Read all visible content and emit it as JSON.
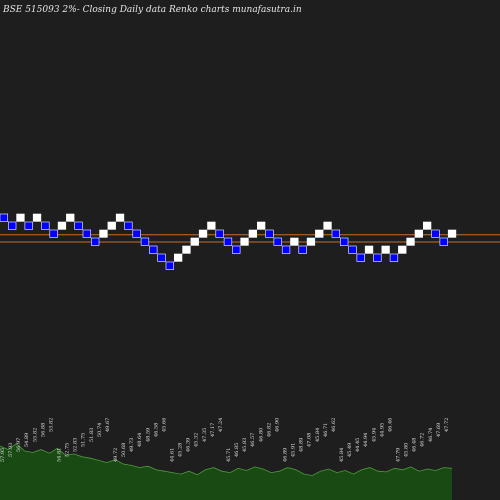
{
  "chart_data": {
    "type": "renko",
    "title": "BSE 515093 2%-  Closing Daily data  Renko  charts munafasutra.in",
    "colors": {
      "background": "#1e1e1e",
      "up_brick": "#ffffff",
      "down_brick": "#0000ff",
      "brick_border": "#ffffff",
      "ref_line": "#c86e28",
      "volume_fill": "#1a4a14",
      "volume_line": "#4c9a3a"
    },
    "bricks": [
      {
        "level": 51,
        "dir": "down"
      },
      {
        "level": 50,
        "dir": "down"
      },
      {
        "level": 51,
        "dir": "up"
      },
      {
        "level": 50,
        "dir": "down"
      },
      {
        "level": 51,
        "dir": "up"
      },
      {
        "level": 50,
        "dir": "down"
      },
      {
        "level": 49,
        "dir": "down"
      },
      {
        "level": 50,
        "dir": "up"
      },
      {
        "level": 51,
        "dir": "up"
      },
      {
        "level": 50,
        "dir": "down"
      },
      {
        "level": 49,
        "dir": "down"
      },
      {
        "level": 48,
        "dir": "down"
      },
      {
        "level": 49,
        "dir": "up"
      },
      {
        "level": 50,
        "dir": "up"
      },
      {
        "level": 51,
        "dir": "up"
      },
      {
        "level": 50,
        "dir": "down"
      },
      {
        "level": 49,
        "dir": "down"
      },
      {
        "level": 48,
        "dir": "down"
      },
      {
        "level": 47,
        "dir": "down"
      },
      {
        "level": 46,
        "dir": "down"
      },
      {
        "level": 45,
        "dir": "down"
      },
      {
        "level": 46,
        "dir": "up"
      },
      {
        "level": 47,
        "dir": "up"
      },
      {
        "level": 48,
        "dir": "up"
      },
      {
        "level": 49,
        "dir": "up"
      },
      {
        "level": 50,
        "dir": "up"
      },
      {
        "level": 49,
        "dir": "down"
      },
      {
        "level": 48,
        "dir": "down"
      },
      {
        "level": 47,
        "dir": "down"
      },
      {
        "level": 48,
        "dir": "up"
      },
      {
        "level": 49,
        "dir": "up"
      },
      {
        "level": 50,
        "dir": "up"
      },
      {
        "level": 49,
        "dir": "down"
      },
      {
        "level": 48,
        "dir": "down"
      },
      {
        "level": 47,
        "dir": "down"
      },
      {
        "level": 48,
        "dir": "up"
      },
      {
        "level": 47,
        "dir": "down"
      },
      {
        "level": 48,
        "dir": "up"
      },
      {
        "level": 49,
        "dir": "up"
      },
      {
        "level": 50,
        "dir": "up"
      },
      {
        "level": 49,
        "dir": "down"
      },
      {
        "level": 48,
        "dir": "down"
      },
      {
        "level": 47,
        "dir": "down"
      },
      {
        "level": 46,
        "dir": "down"
      },
      {
        "level": 47,
        "dir": "up"
      },
      {
        "level": 46,
        "dir": "down"
      },
      {
        "level": 47,
        "dir": "up"
      },
      {
        "level": 46,
        "dir": "down"
      },
      {
        "level": 47,
        "dir": "up"
      },
      {
        "level": 48,
        "dir": "up"
      },
      {
        "level": 49,
        "dir": "up"
      },
      {
        "level": 50,
        "dir": "up"
      },
      {
        "level": 49,
        "dir": "down"
      },
      {
        "level": 48,
        "dir": "down"
      },
      {
        "level": 49,
        "dir": "up"
      }
    ],
    "reference_lines": [
      {
        "level": 48.9
      },
      {
        "level": 48.0
      }
    ],
    "volume_labels": [
      "57.95",
      "57.93",
      "56.97",
      "54.89",
      "55.82",
      "56.88",
      "53.82",
      "54.81",
      "52.75",
      "52.83",
      "51.75",
      "51.83",
      "50.74",
      "49.67",
      "49.72",
      "50.68",
      "49.73",
      "48.64",
      "48.59",
      "46.58",
      "45.66",
      "44.61",
      "45.28",
      "46.39",
      "45.32",
      "47.35",
      "47.17",
      "47.24",
      "45.71",
      "46.85",
      "45.83",
      "46.57",
      "46.80",
      "46.82",
      "46.90",
      "46.89",
      "45.91",
      "48.89",
      "47.08",
      "45.84",
      "46.71",
      "46.62",
      "45.84",
      "45.49",
      "44.45",
      "44.94",
      "45.94",
      "44.95",
      "46.46",
      "47.79",
      "45.80",
      "46.48",
      "46.72",
      "46.74",
      "47.69",
      "47.72"
    ],
    "volume": [
      0.75,
      0.7,
      0.78,
      0.68,
      0.66,
      0.7,
      0.65,
      0.72,
      0.62,
      0.64,
      0.6,
      0.58,
      0.55,
      0.52,
      0.56,
      0.5,
      0.48,
      0.45,
      0.47,
      0.42,
      0.4,
      0.38,
      0.36,
      0.4,
      0.35,
      0.42,
      0.45,
      0.4,
      0.38,
      0.44,
      0.41,
      0.46,
      0.43,
      0.38,
      0.4,
      0.45,
      0.42,
      0.36,
      0.34,
      0.4,
      0.43,
      0.38,
      0.41,
      0.36,
      0.42,
      0.45,
      0.4,
      0.39,
      0.44,
      0.42,
      0.46,
      0.4,
      0.43,
      0.41,
      0.45,
      0.44
    ]
  }
}
